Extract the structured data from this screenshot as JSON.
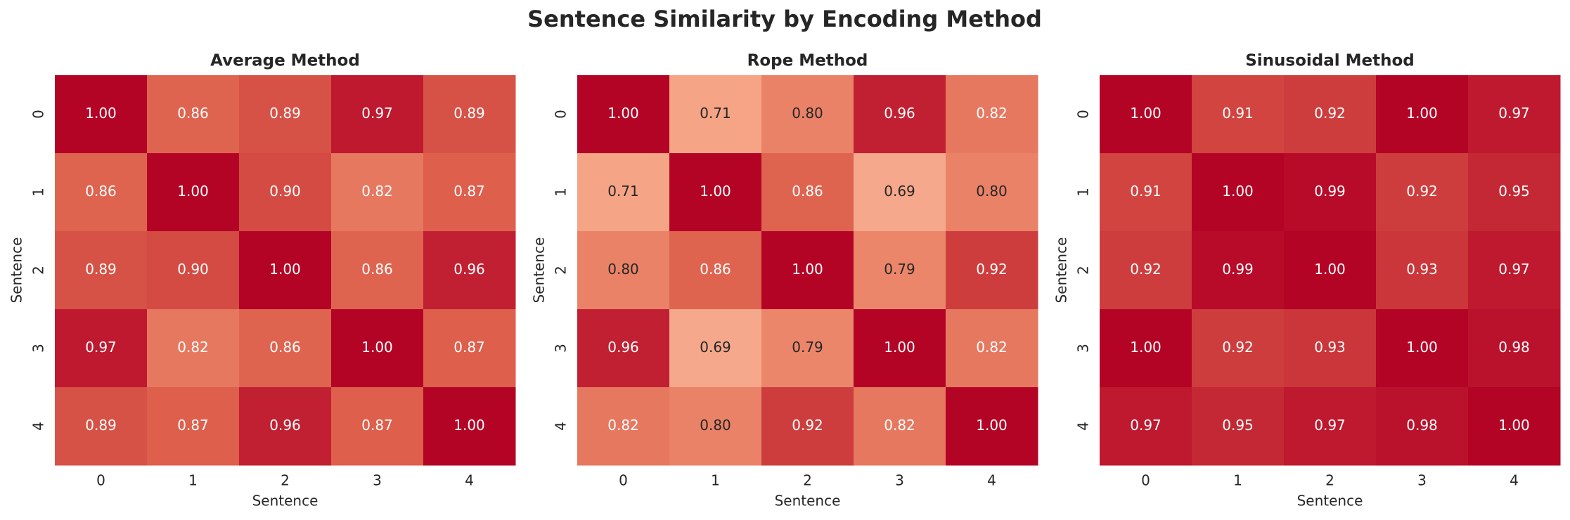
{
  "title": "Sentence Similarity by Encoding Method",
  "chart_data": [
    {
      "type": "heatmap",
      "title": "Average Method",
      "x_label": "Sentence",
      "y_label": "Sentence",
      "x": [
        0,
        1,
        2,
        3,
        4
      ],
      "y": [
        0,
        1,
        2,
        3,
        4
      ],
      "colormap": "coolwarm",
      "vlim": [
        0,
        1
      ],
      "values": [
        [
          1.0,
          0.86,
          0.89,
          0.97,
          0.89
        ],
        [
          0.86,
          1.0,
          0.9,
          0.82,
          0.87
        ],
        [
          0.89,
          0.9,
          1.0,
          0.86,
          0.96
        ],
        [
          0.97,
          0.82,
          0.86,
          1.0,
          0.87
        ],
        [
          0.89,
          0.87,
          0.96,
          0.87,
          1.0
        ]
      ],
      "value_labels": [
        [
          "1.00",
          "0.86",
          "0.89",
          "0.97",
          "0.89"
        ],
        [
          "0.86",
          "1.00",
          "0.90",
          "0.82",
          "0.87"
        ],
        [
          "0.89",
          "0.90",
          "1.00",
          "0.86",
          "0.96"
        ],
        [
          "0.97",
          "0.82",
          "0.86",
          "1.00",
          "0.87"
        ],
        [
          "0.89",
          "0.87",
          "0.96",
          "0.87",
          "1.00"
        ]
      ]
    },
    {
      "type": "heatmap",
      "title": "Rope Method",
      "x_label": "Sentence",
      "y_label": "Sentence",
      "x": [
        0,
        1,
        2,
        3,
        4
      ],
      "y": [
        0,
        1,
        2,
        3,
        4
      ],
      "colormap": "coolwarm",
      "vlim": [
        0,
        1
      ],
      "values": [
        [
          1.0,
          0.71,
          0.8,
          0.96,
          0.82
        ],
        [
          0.71,
          1.0,
          0.86,
          0.69,
          0.8
        ],
        [
          0.8,
          0.86,
          1.0,
          0.79,
          0.92
        ],
        [
          0.96,
          0.69,
          0.79,
          1.0,
          0.82
        ],
        [
          0.82,
          0.8,
          0.92,
          0.82,
          1.0
        ]
      ],
      "value_labels": [
        [
          "1.00",
          "0.71",
          "0.80",
          "0.96",
          "0.82"
        ],
        [
          "0.71",
          "1.00",
          "0.86",
          "0.69",
          "0.80"
        ],
        [
          "0.80",
          "0.86",
          "1.00",
          "0.79",
          "0.92"
        ],
        [
          "0.96",
          "0.69",
          "0.79",
          "1.00",
          "0.82"
        ],
        [
          "0.82",
          "0.80",
          "0.92",
          "0.82",
          "1.00"
        ]
      ]
    },
    {
      "type": "heatmap",
      "title": "Sinusoidal Method",
      "x_label": "Sentence",
      "y_label": "Sentence",
      "x": [
        0,
        1,
        2,
        3,
        4
      ],
      "y": [
        0,
        1,
        2,
        3,
        4
      ],
      "colormap": "coolwarm",
      "vlim": [
        0,
        1
      ],
      "values": [
        [
          1.0,
          0.91,
          0.92,
          1.0,
          0.97
        ],
        [
          0.91,
          1.0,
          0.99,
          0.92,
          0.95
        ],
        [
          0.92,
          0.99,
          1.0,
          0.93,
          0.97
        ],
        [
          1.0,
          0.92,
          0.93,
          1.0,
          0.98
        ],
        [
          0.97,
          0.95,
          0.97,
          0.98,
          1.0
        ]
      ],
      "value_labels": [
        [
          "1.00",
          "0.91",
          "0.92",
          "1.00",
          "0.97"
        ],
        [
          "0.91",
          "1.00",
          "0.99",
          "0.92",
          "0.95"
        ],
        [
          "0.92",
          "0.99",
          "1.00",
          "0.93",
          "0.97"
        ],
        [
          "1.00",
          "0.92",
          "0.93",
          "1.00",
          "0.98"
        ],
        [
          "0.97",
          "0.95",
          "0.97",
          "0.98",
          "1.00"
        ]
      ]
    }
  ]
}
